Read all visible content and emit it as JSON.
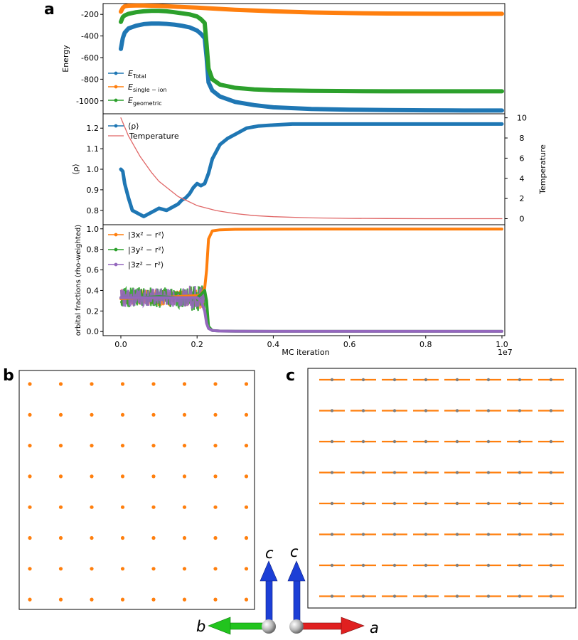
{
  "panel_labels": {
    "a": "a",
    "b": "b",
    "c": "c"
  },
  "colors": {
    "total": "#1f77b4",
    "single_ion": "#ff7f0e",
    "geometric": "#2ca02c",
    "rho": "#1f77b4",
    "temperature": "#e06666",
    "orb_x": "#ff7f0e",
    "orb_y": "#2ca02c",
    "orb_z": "#9467bd",
    "lattice_point": "#ff7f0e",
    "lattice_bar": "#ff7f0e",
    "lattice_atom": "#7f7f7f",
    "arrow_b": "#22c41e",
    "arrow_a": "#e02020",
    "arrow_c": "#1c3fd6"
  },
  "chart_data": [
    {
      "type": "line",
      "ylabel": "Energy",
      "xlim": [
        0,
        1.0
      ],
      "ylim": [
        -1120,
        -100
      ],
      "yticks": [
        "-200",
        "-400",
        "-600",
        "-800",
        "-1000"
      ],
      "ytick_values": [
        -200,
        -400,
        -600,
        -800,
        -1000
      ],
      "legend_loc": "lower-left",
      "series": [
        {
          "key": "total",
          "name_main": "E",
          "name_sub": "Total",
          "x": [
            0,
            0.005,
            0.01,
            0.02,
            0.04,
            0.06,
            0.08,
            0.1,
            0.12,
            0.14,
            0.16,
            0.18,
            0.2,
            0.21,
            0.22,
            0.225,
            0.23,
            0.24,
            0.26,
            0.3,
            0.35,
            0.4,
            0.5,
            0.6,
            0.7,
            0.8,
            0.9,
            1.0
          ],
          "y": [
            -520,
            -420,
            -370,
            -330,
            -305,
            -290,
            -285,
            -285,
            -288,
            -295,
            -305,
            -320,
            -350,
            -380,
            -420,
            -600,
            -830,
            -905,
            -960,
            -1010,
            -1040,
            -1060,
            -1075,
            -1082,
            -1086,
            -1088,
            -1090,
            -1090
          ]
        },
        {
          "key": "single_ion",
          "name_main": "E",
          "name_sub": "single − ion",
          "x": [
            0,
            0.005,
            0.01,
            0.02,
            0.04,
            0.06,
            0.1,
            0.15,
            0.2,
            0.25,
            0.3,
            0.4,
            0.5,
            0.6,
            0.7,
            0.8,
            0.9,
            1.0
          ],
          "y": [
            -175,
            -140,
            -125,
            -120,
            -118,
            -118,
            -122,
            -130,
            -138,
            -148,
            -158,
            -172,
            -182,
            -188,
            -192,
            -194,
            -195,
            -195
          ]
        },
        {
          "key": "geometric",
          "name_main": "E",
          "name_sub": "geometric",
          "x": [
            0,
            0.005,
            0.01,
            0.02,
            0.04,
            0.06,
            0.08,
            0.1,
            0.12,
            0.14,
            0.16,
            0.18,
            0.2,
            0.21,
            0.22,
            0.225,
            0.23,
            0.24,
            0.26,
            0.3,
            0.35,
            0.4,
            0.5,
            0.6,
            0.7,
            0.8,
            0.9,
            1.0
          ],
          "y": [
            -270,
            -225,
            -210,
            -195,
            -180,
            -172,
            -168,
            -168,
            -172,
            -180,
            -190,
            -200,
            -220,
            -245,
            -280,
            -480,
            -700,
            -800,
            -850,
            -880,
            -895,
            -902,
            -908,
            -910,
            -912,
            -912,
            -912,
            -912
          ]
        }
      ]
    },
    {
      "type": "line",
      "ylabel": "⟨ρ⟩",
      "ylabel_right": "Temperature",
      "xlim": [
        0,
        1.0
      ],
      "ylim": [
        0.73,
        1.27
      ],
      "ylim_right": [
        -0.6,
        10.4
      ],
      "yticks": [
        "0.8",
        "0.9",
        "1.0",
        "1.1",
        "1.2"
      ],
      "ytick_values": [
        0.8,
        0.9,
        1.0,
        1.1,
        1.2
      ],
      "yticks_right": [
        "0",
        "2",
        "4",
        "6",
        "8",
        "10"
      ],
      "ytick_values_right": [
        0,
        2,
        4,
        6,
        8,
        10
      ],
      "legend_loc": "upper-left",
      "series": [
        {
          "key": "rho",
          "name": "⟨ρ⟩",
          "axis": "left",
          "x": [
            0,
            0.005,
            0.01,
            0.02,
            0.03,
            0.04,
            0.05,
            0.06,
            0.07,
            0.08,
            0.1,
            0.12,
            0.14,
            0.15,
            0.16,
            0.17,
            0.18,
            0.19,
            0.2,
            0.21,
            0.22,
            0.23,
            0.24,
            0.26,
            0.28,
            0.3,
            0.33,
            0.36,
            0.4,
            0.45,
            0.5,
            0.6,
            0.7,
            0.8,
            0.9,
            1.0
          ],
          "y": [
            1.0,
            0.99,
            0.93,
            0.86,
            0.8,
            0.79,
            0.78,
            0.77,
            0.78,
            0.79,
            0.81,
            0.8,
            0.82,
            0.83,
            0.85,
            0.86,
            0.88,
            0.91,
            0.93,
            0.92,
            0.93,
            0.98,
            1.05,
            1.12,
            1.15,
            1.17,
            1.2,
            1.21,
            1.215,
            1.22,
            1.22,
            1.22,
            1.22,
            1.22,
            1.22,
            1.22
          ]
        },
        {
          "key": "temperature",
          "name": "Temperature",
          "axis": "right",
          "x": [
            0,
            0.02,
            0.05,
            0.08,
            0.1,
            0.15,
            0.2,
            0.25,
            0.3,
            0.35,
            0.4,
            0.5,
            0.6,
            0.7,
            0.8,
            0.9,
            1.0
          ],
          "y": [
            10,
            8.2,
            6.2,
            4.6,
            3.7,
            2.2,
            1.3,
            0.8,
            0.5,
            0.3,
            0.2,
            0.08,
            0.03,
            0.01,
            0.0,
            0.0,
            0.0
          ]
        }
      ]
    },
    {
      "type": "line",
      "ylabel": "orbital fractions (rho-weighted)",
      "xlabel": "MC iteration",
      "x_offset_label": "1e7",
      "xlim": [
        -0.05,
        1.0
      ],
      "ylim": [
        -0.04,
        1.04
      ],
      "xticks": [
        "0.0",
        "0.2",
        "0.4",
        "0.6",
        "0.8",
        "1.0"
      ],
      "xtick_values": [
        0,
        0.2,
        0.4,
        0.6,
        0.8,
        1.0
      ],
      "yticks": [
        "0.0",
        "0.2",
        "0.4",
        "0.6",
        "0.8",
        "1.0"
      ],
      "ytick_values": [
        0,
        0.2,
        0.4,
        0.6,
        0.8,
        1.0
      ],
      "legend_loc": "upper-left",
      "series": [
        {
          "key": "orb_x",
          "name": "|3x² − r²⟩",
          "x": [
            0,
            0.05,
            0.1,
            0.15,
            0.2,
            0.21,
            0.22,
            0.225,
            0.23,
            0.24,
            0.26,
            0.3,
            0.4,
            0.5,
            0.6,
            0.7,
            0.8,
            0.9,
            1.0
          ],
          "y": [
            0.32,
            0.33,
            0.33,
            0.34,
            0.35,
            0.36,
            0.42,
            0.6,
            0.9,
            0.98,
            0.99,
            0.995,
            0.997,
            0.998,
            0.998,
            0.998,
            0.998,
            0.998,
            0.998
          ]
        },
        {
          "key": "orb_y",
          "name": "|3y² − r²⟩",
          "x": [
            0,
            0.05,
            0.1,
            0.15,
            0.2,
            0.21,
            0.22,
            0.225,
            0.23,
            0.24,
            0.26,
            0.3,
            0.4,
            0.5,
            0.6,
            0.7,
            0.8,
            0.9,
            1.0
          ],
          "y": [
            0.33,
            0.33,
            0.34,
            0.33,
            0.33,
            0.36,
            0.4,
            0.3,
            0.05,
            0.01,
            0.005,
            0.003,
            0.002,
            0.002,
            0.002,
            0.002,
            0.002,
            0.002,
            0.002
          ]
        },
        {
          "key": "orb_z",
          "name": "|3z² − r²⟩",
          "x": [
            0,
            0.05,
            0.1,
            0.15,
            0.2,
            0.21,
            0.22,
            0.225,
            0.23,
            0.24,
            0.26,
            0.3,
            0.4,
            0.5,
            0.6,
            0.7,
            0.8,
            0.9,
            1.0
          ],
          "y": [
            0.33,
            0.33,
            0.33,
            0.33,
            0.33,
            0.3,
            0.2,
            0.08,
            0.03,
            0.01,
            0.005,
            0.003,
            0.002,
            0.002,
            0.002,
            0.002,
            0.002,
            0.002,
            0.002
          ]
        }
      ]
    }
  ],
  "lattice_b": {
    "rows": 8,
    "cols": 8
  },
  "lattice_c": {
    "rows": 8,
    "cols": 8
  },
  "axis_labels": {
    "b": "b",
    "a": "a",
    "c_left": "c",
    "c_right": "c"
  }
}
